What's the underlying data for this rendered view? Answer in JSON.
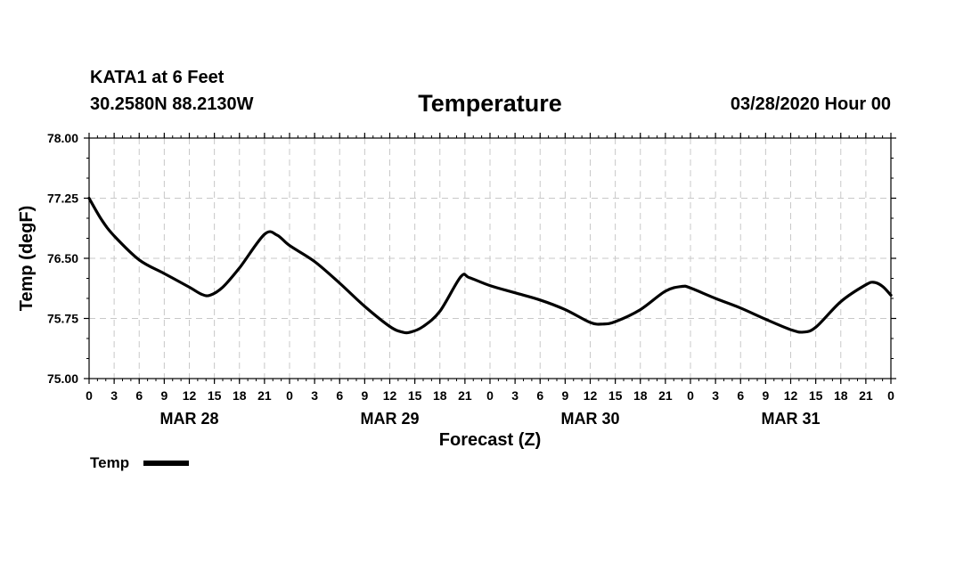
{
  "header": {
    "station": "KATA1 at 6 Feet",
    "coords": "30.2580N 88.2130W",
    "title": "Temperature",
    "run_time": "03/28/2020 Hour 00"
  },
  "chart_data": {
    "type": "line",
    "title": "Temperature",
    "xlabel": "Forecast (Z)",
    "ylabel": "Temp (degF)",
    "ylim": [
      75.0,
      78.0
    ],
    "y_ticks": [
      "75.00",
      "75.75",
      "76.50",
      "77.25",
      "78.00"
    ],
    "x_range_hours": [
      0,
      96
    ],
    "x_tick_labels": [
      "0",
      "3",
      "6",
      "9",
      "12",
      "15",
      "18",
      "21",
      "0",
      "3",
      "6",
      "9",
      "12",
      "15",
      "18",
      "21",
      "0",
      "3",
      "6",
      "9",
      "12",
      "15",
      "18",
      "21",
      "0",
      "3",
      "6",
      "9",
      "12",
      "15",
      "18",
      "21",
      "0"
    ],
    "day_labels": [
      "MAR 28",
      "MAR 29",
      "MAR 30",
      "MAR 31"
    ],
    "grid": true,
    "legend": "bottom-left",
    "series": [
      {
        "name": "Temp",
        "color": "#000000",
        "x_hours": [
          0,
          1.5,
          3,
          6,
          9,
          12,
          13.5,
          14.5,
          16,
          18,
          21,
          22.5,
          24,
          27,
          30,
          33,
          36,
          37.5,
          38.5,
          40,
          42,
          44.5,
          45.5,
          48,
          51,
          54,
          57,
          60,
          61.5,
          63,
          66,
          69,
          71,
          72,
          75,
          78,
          81,
          84,
          85.5,
          87,
          90,
          93,
          94,
          95,
          96
        ],
        "values": [
          77.25,
          76.98,
          76.78,
          76.48,
          76.31,
          76.14,
          76.05,
          76.04,
          76.14,
          76.38,
          76.8,
          76.79,
          76.66,
          76.46,
          76.19,
          75.9,
          75.65,
          75.58,
          75.58,
          75.65,
          75.84,
          76.27,
          76.26,
          76.16,
          76.07,
          75.98,
          75.86,
          75.7,
          75.68,
          75.71,
          75.86,
          76.09,
          76.15,
          76.13,
          76.0,
          75.88,
          75.74,
          75.61,
          75.58,
          75.64,
          75.96,
          76.17,
          76.2,
          76.15,
          76.04
        ]
      }
    ]
  }
}
